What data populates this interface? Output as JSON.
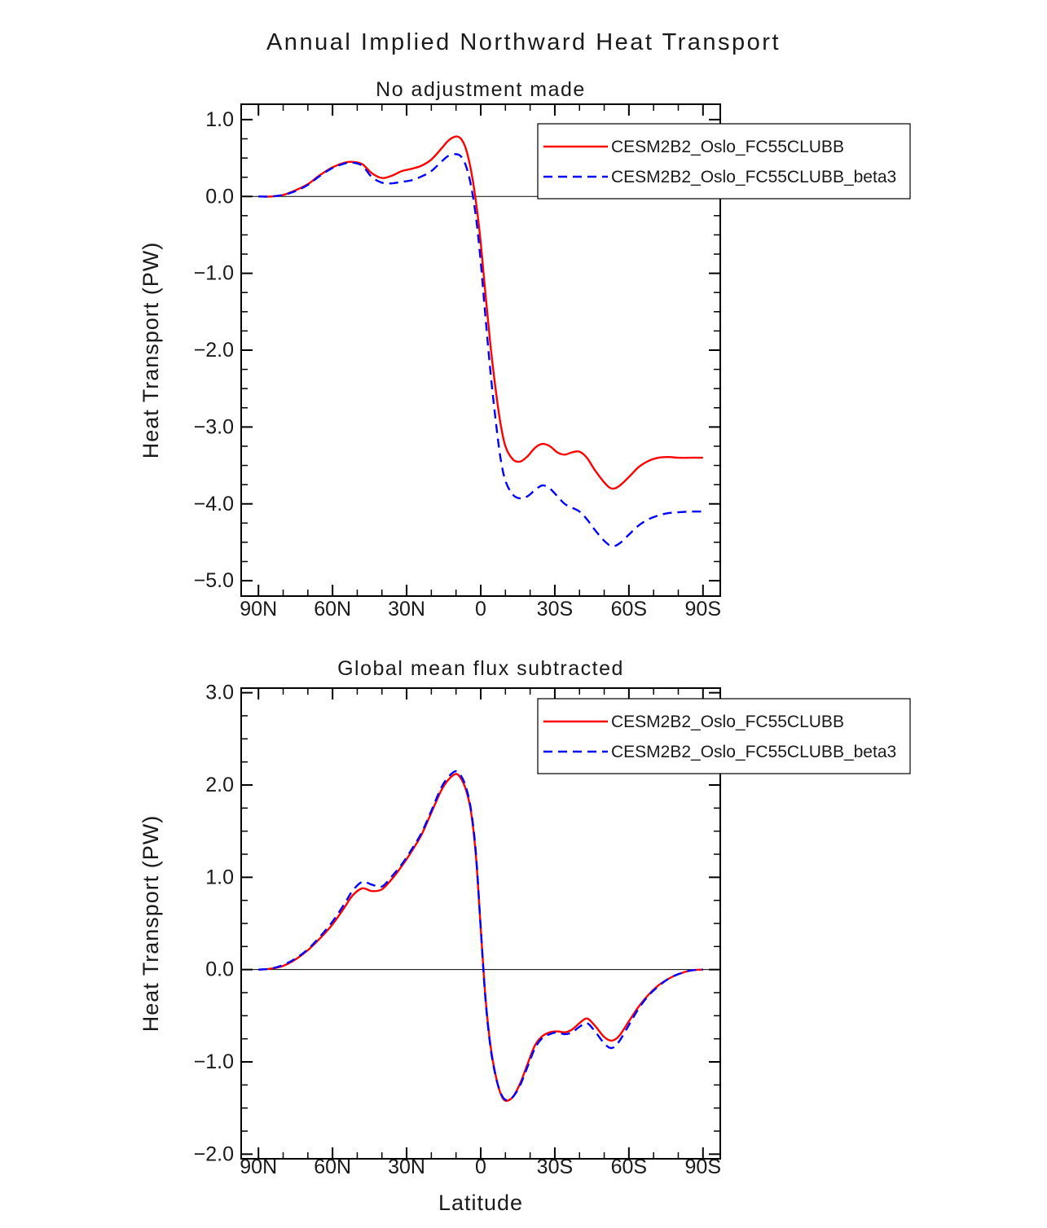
{
  "figure": {
    "title": "Annual Implied Northward Heat Transport"
  },
  "colors": {
    "axis": "#000000",
    "series1": "#ff0000",
    "series2": "#0000ff"
  },
  "chart_data": [
    {
      "type": "line",
      "title": "No adjustment made",
      "ylabel": "Heat Transport (PW)",
      "xlabel": "",
      "xlim": [
        90,
        -90
      ],
      "ylim": [
        -5.0,
        1.0
      ],
      "xticks": [
        90,
        60,
        30,
        0,
        -30,
        -60,
        -90
      ],
      "xtick_labels": [
        "90N",
        "60N",
        "30N",
        "0",
        "30S",
        "60S",
        "90S"
      ],
      "yticks": [
        1.0,
        0.0,
        -1.0,
        -2.0,
        -3.0,
        -4.0,
        -5.0
      ],
      "ytick_labels": [
        "1.0",
        "0.0",
        "−1.0",
        "−2.0",
        "−3.0",
        "−4.0",
        "−5.0"
      ],
      "x_minor_step": 10,
      "y_minor_step": 0.25,
      "zero_line": true,
      "grid": false,
      "legend_position": "upper-right",
      "x": [
        90,
        85,
        80,
        75,
        70,
        65,
        60,
        55,
        52,
        48,
        44,
        40,
        36,
        32,
        28,
        24,
        20,
        16,
        13,
        10,
        8,
        6,
        4,
        2,
        0,
        -2,
        -4,
        -6,
        -8,
        -10,
        -13,
        -16,
        -19,
        -22,
        -25,
        -28,
        -31,
        -34,
        -37,
        -40,
        -43,
        -46,
        -50,
        -53,
        -56,
        -60,
        -64,
        -68,
        -72,
        -76,
        -80,
        -85,
        -90
      ],
      "series": [
        {
          "name": "CESM2B2_Oslo_FC55CLUBB",
          "color": "#ff0000",
          "style": "solid",
          "values": [
            0.0,
            0.0,
            0.02,
            0.08,
            0.16,
            0.28,
            0.38,
            0.44,
            0.45,
            0.42,
            0.3,
            0.24,
            0.27,
            0.33,
            0.36,
            0.4,
            0.48,
            0.62,
            0.73,
            0.78,
            0.75,
            0.62,
            0.35,
            -0.05,
            -0.6,
            -1.3,
            -1.95,
            -2.5,
            -2.95,
            -3.25,
            -3.42,
            -3.45,
            -3.38,
            -3.27,
            -3.22,
            -3.25,
            -3.33,
            -3.36,
            -3.33,
            -3.32,
            -3.4,
            -3.55,
            -3.72,
            -3.8,
            -3.77,
            -3.65,
            -3.52,
            -3.44,
            -3.4,
            -3.39,
            -3.4,
            -3.4,
            -3.4
          ]
        },
        {
          "name": "CESM2B2_Oslo_FC55CLUBB_beta3",
          "color": "#0000ff",
          "style": "dashed",
          "values": [
            0.0,
            0.0,
            0.02,
            0.07,
            0.15,
            0.27,
            0.37,
            0.43,
            0.44,
            0.4,
            0.25,
            0.18,
            0.17,
            0.19,
            0.21,
            0.26,
            0.33,
            0.45,
            0.53,
            0.55,
            0.52,
            0.4,
            0.15,
            -0.25,
            -0.85,
            -1.6,
            -2.3,
            -2.9,
            -3.4,
            -3.7,
            -3.88,
            -3.93,
            -3.9,
            -3.82,
            -3.76,
            -3.8,
            -3.9,
            -4.0,
            -4.05,
            -4.1,
            -4.2,
            -4.33,
            -4.48,
            -4.55,
            -4.52,
            -4.4,
            -4.28,
            -4.2,
            -4.15,
            -4.12,
            -4.11,
            -4.1,
            -4.1
          ]
        }
      ]
    },
    {
      "type": "line",
      "title": "Global mean flux subtracted",
      "ylabel": "Heat Transport (PW)",
      "xlabel": "Latitude",
      "xlim": [
        90,
        -90
      ],
      "ylim": [
        -2.0,
        3.0
      ],
      "xticks": [
        90,
        60,
        30,
        0,
        -30,
        -60,
        -90
      ],
      "xtick_labels": [
        "90N",
        "60N",
        "30N",
        "0",
        "30S",
        "60S",
        "90S"
      ],
      "yticks": [
        3.0,
        2.0,
        1.0,
        0.0,
        -1.0,
        -2.0
      ],
      "ytick_labels": [
        "3.0",
        "2.0",
        "1.0",
        "0.0",
        "−1.0",
        "−2.0"
      ],
      "x_minor_step": 10,
      "y_minor_step": 0.25,
      "zero_line": true,
      "grid": false,
      "legend_position": "upper-right",
      "x": [
        90,
        85,
        80,
        75,
        70,
        65,
        60,
        55,
        52,
        48,
        44,
        40,
        36,
        32,
        28,
        24,
        20,
        16,
        13,
        10,
        8,
        6,
        4,
        2,
        0,
        -2,
        -4,
        -6,
        -8,
        -10,
        -13,
        -16,
        -19,
        -22,
        -25,
        -28,
        -31,
        -34,
        -37,
        -40,
        -43,
        -46,
        -50,
        -53,
        -56,
        -60,
        -64,
        -68,
        -72,
        -76,
        -80,
        -85,
        -90
      ],
      "series": [
        {
          "name": "CESM2B2_Oslo_FC55CLUBB",
          "color": "#ff0000",
          "style": "solid",
          "values": [
            0.0,
            0.01,
            0.04,
            0.11,
            0.21,
            0.34,
            0.49,
            0.68,
            0.8,
            0.88,
            0.85,
            0.87,
            0.98,
            1.12,
            1.28,
            1.46,
            1.7,
            1.94,
            2.06,
            2.12,
            2.07,
            1.95,
            1.72,
            1.25,
            0.45,
            -0.33,
            -0.83,
            -1.14,
            -1.34,
            -1.42,
            -1.38,
            -1.23,
            -1.02,
            -0.82,
            -0.72,
            -0.68,
            -0.67,
            -0.68,
            -0.65,
            -0.58,
            -0.53,
            -0.6,
            -0.73,
            -0.77,
            -0.72,
            -0.56,
            -0.4,
            -0.27,
            -0.17,
            -0.1,
            -0.05,
            -0.01,
            0.0
          ]
        },
        {
          "name": "CESM2B2_Oslo_FC55CLUBB_beta3",
          "color": "#0000ff",
          "style": "dashed",
          "values": [
            0.0,
            0.01,
            0.05,
            0.12,
            0.22,
            0.36,
            0.52,
            0.72,
            0.85,
            0.95,
            0.92,
            0.9,
            1.01,
            1.14,
            1.3,
            1.48,
            1.72,
            1.97,
            2.09,
            2.15,
            2.1,
            1.98,
            1.74,
            1.28,
            0.45,
            -0.35,
            -0.85,
            -1.15,
            -1.33,
            -1.41,
            -1.38,
            -1.25,
            -1.05,
            -0.85,
            -0.74,
            -0.7,
            -0.68,
            -0.7,
            -0.68,
            -0.62,
            -0.58,
            -0.66,
            -0.8,
            -0.85,
            -0.78,
            -0.6,
            -0.42,
            -0.28,
            -0.18,
            -0.1,
            -0.05,
            -0.01,
            0.0
          ]
        }
      ]
    }
  ]
}
